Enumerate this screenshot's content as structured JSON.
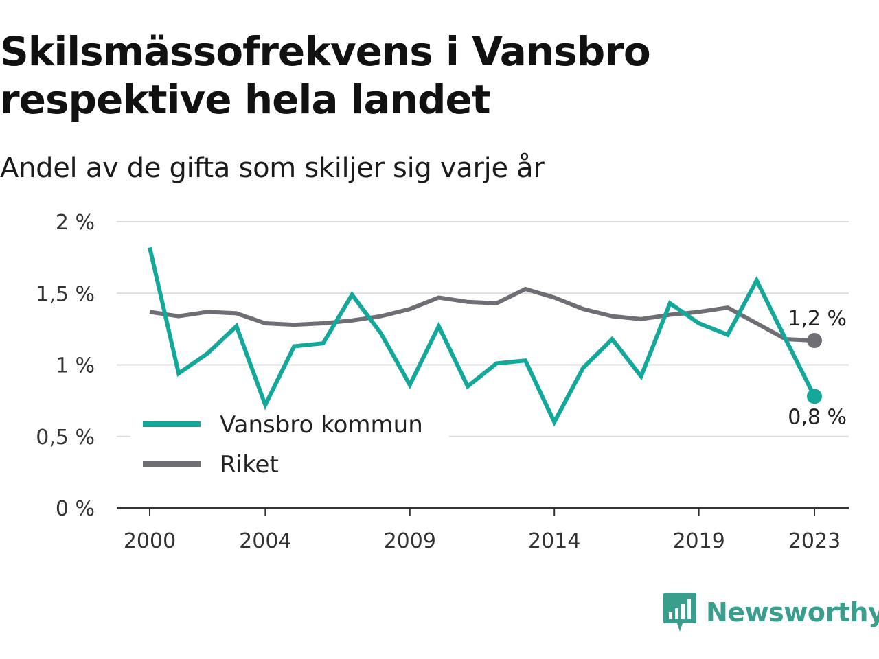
{
  "title": "Skilsmässofrekvens i Vansbro respektive hela landet",
  "subtitle": "Andel av de gifta som skiljer sig varje år",
  "brand": {
    "name": "Newsworthy",
    "color": "#3a9e8c",
    "icon": "bar-chart-logo-icon"
  },
  "chart_data": {
    "type": "line",
    "x": [
      2000,
      2001,
      2002,
      2003,
      2004,
      2005,
      2006,
      2007,
      2008,
      2009,
      2010,
      2011,
      2012,
      2013,
      2014,
      2015,
      2016,
      2017,
      2018,
      2019,
      2020,
      2021,
      2022,
      2023
    ],
    "x_ticks": [
      2000,
      2004,
      2009,
      2014,
      2019,
      2023
    ],
    "x_tick_labels": [
      "2000",
      "2004",
      "2009",
      "2014",
      "2019",
      "2023"
    ],
    "y_ticks": [
      0,
      0.5,
      1,
      1.5,
      2
    ],
    "y_tick_labels": [
      "0 %",
      "0,5 %",
      "1 %",
      "1,5 %",
      "2 %"
    ],
    "ylim": [
      0,
      2
    ],
    "grid": true,
    "legend_position": "lower-left",
    "series": [
      {
        "name": "Vansbro kommun",
        "color": "#13a89a",
        "values": [
          1.82,
          0.94,
          1.08,
          1.27,
          0.72,
          1.13,
          1.15,
          1.49,
          1.22,
          0.86,
          1.27,
          0.85,
          1.01,
          1.03,
          0.6,
          0.98,
          1.18,
          0.92,
          1.43,
          1.29,
          1.21,
          1.59,
          1.18,
          0.78
        ],
        "end_label": "0,8 %"
      },
      {
        "name": "Riket",
        "color": "#6f6e74",
        "values": [
          1.37,
          1.34,
          1.37,
          1.36,
          1.29,
          1.28,
          1.29,
          1.31,
          1.34,
          1.39,
          1.47,
          1.44,
          1.43,
          1.53,
          1.47,
          1.39,
          1.34,
          1.32,
          1.35,
          1.37,
          1.4,
          1.29,
          1.18,
          1.17
        ],
        "end_label": "1,2 %"
      }
    ]
  }
}
